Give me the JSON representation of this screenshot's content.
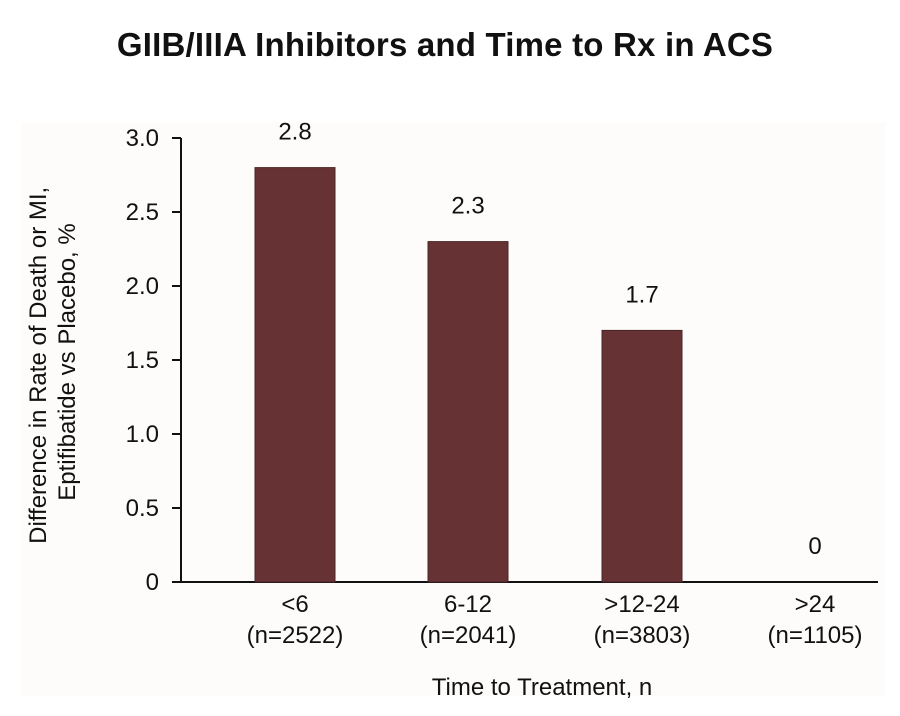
{
  "chart_data": {
    "type": "bar",
    "title": "GIIB/IIIA Inhibitors and Time to Rx in ACS",
    "xlabel": "Time to Treatment, n",
    "ylabel_lines": [
      "Difference in Rate of Death or MI,",
      "Eptifibatide vs Placebo, %"
    ],
    "ylim": [
      0,
      3.0
    ],
    "yticks": [
      "3.0",
      "2.5",
      "2.0",
      "1.5",
      "1.0",
      "0.5",
      "0"
    ],
    "ytick_values": [
      3.0,
      2.5,
      2.0,
      1.5,
      1.0,
      0.5,
      0
    ],
    "categories": [
      {
        "label": "<6",
        "n": "(n=2522)"
      },
      {
        "label": "6-12",
        "n": "(n=2041)"
      },
      {
        "label": ">12-24",
        "n": "(n=3803)"
      },
      {
        "label": ">24",
        "n": "(n=1105)"
      }
    ],
    "values": [
      2.8,
      2.3,
      1.7,
      0
    ],
    "value_labels": [
      "2.8",
      "2.3",
      "1.7",
      "0"
    ],
    "bar_color": "#673233",
    "grid": false
  }
}
